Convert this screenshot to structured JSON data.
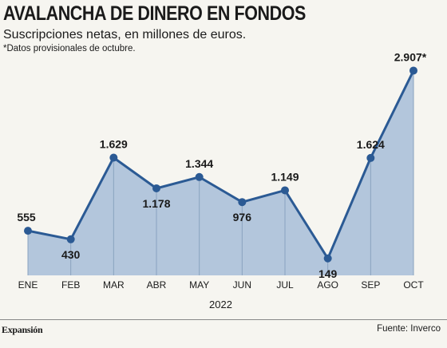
{
  "header": {
    "title": "AVALANCHA DE DINERO EN FONDOS",
    "subtitle": "Suscripciones netas, en millones de euros.",
    "note": "*Datos provisionales de octubre."
  },
  "footer": {
    "brand": "Expansión",
    "source": "Fuente: Inverco"
  },
  "colors": {
    "area_fill": "#b3c6dc",
    "line": "#2b5a94",
    "marker": "#2b5a94"
  },
  "chart_data": {
    "type": "area",
    "title": "AVALANCHA DE DINERO EN FONDOS",
    "subtitle": "Suscripciones netas, en millones de euros.",
    "xlabel": "2022",
    "ylabel": "",
    "categories": [
      "ENE",
      "FEB",
      "MAR",
      "ABR",
      "MAY",
      "JUN",
      "JUL",
      "AGO",
      "SEP",
      "OCT"
    ],
    "values": [
      555,
      430,
      1629,
      1178,
      1344,
      976,
      1149,
      149,
      1624,
      2907
    ],
    "labels": [
      "555",
      "430",
      "1.629",
      "1.178",
      "1.344",
      "976",
      "1.149",
      "149",
      "1.624",
      "2.907*"
    ],
    "label_positions": [
      "above",
      "below",
      "above",
      "below",
      "above",
      "below",
      "above",
      "below",
      "above",
      "above"
    ],
    "ylim": [
      -100,
      3100
    ],
    "grid": false,
    "legend": "none"
  }
}
